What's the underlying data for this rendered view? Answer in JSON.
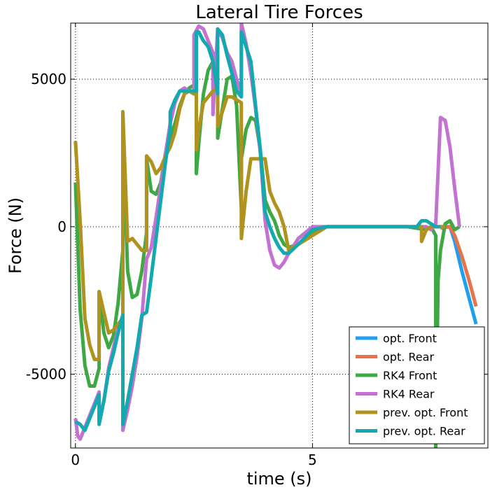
{
  "chart_data": {
    "type": "line",
    "title": "Lateral Tire Forces",
    "xlabel": "time (s)",
    "ylabel": "Force (N)",
    "xlim": [
      -0.1,
      8.7
    ],
    "ylim": [
      -7500,
      6900
    ],
    "xticks": [
      0,
      5
    ],
    "xtick_labels": [
      "0",
      "5"
    ],
    "yticks": [
      -5000,
      0,
      5000
    ],
    "ytick_labels": [
      "-5000",
      "0",
      "5000"
    ],
    "grid": true,
    "legend_position": "bottom-right",
    "series": [
      {
        "name": "opt. Front",
        "color": "#1f9ff0",
        "x": [
          7.7,
          7.9,
          8.0,
          8.15,
          8.3,
          8.45
        ],
        "y": [
          0,
          0,
          -500,
          -1500,
          -2400,
          -3300
        ]
      },
      {
        "name": "opt. Rear",
        "color": "#e8734a",
        "x": [
          7.7,
          7.9,
          8.0,
          8.15,
          8.3,
          8.45
        ],
        "y": [
          -50,
          0,
          -300,
          -1000,
          -1800,
          -2700
        ]
      },
      {
        "name": "RK4 Front",
        "color": "#3ea845",
        "x": [
          0,
          0.1,
          0.2,
          0.3,
          0.4,
          0.5,
          0.5,
          0.6,
          0.7,
          0.8,
          0.9,
          1.0,
          1.0,
          1.1,
          1.2,
          1.3,
          1.4,
          1.5,
          1.5,
          1.6,
          1.7,
          1.8,
          1.9,
          2.0,
          2.1,
          2.2,
          2.3,
          2.4,
          2.5,
          2.55,
          2.55,
          2.6,
          2.7,
          2.8,
          2.9,
          3.0,
          3.0,
          3.1,
          3.2,
          3.3,
          3.4,
          3.5,
          3.5,
          3.6,
          3.7,
          3.8,
          3.9,
          4.0,
          4.1,
          4.2,
          4.3,
          4.4,
          4.5,
          4.7,
          5.0,
          5.3,
          5.6,
          6.0,
          6.5,
          7.0,
          7.4,
          7.5,
          7.6,
          7.6,
          7.65,
          7.7,
          7.8,
          7.9,
          8.0,
          8.1
        ],
        "y": [
          1500,
          -2800,
          -4700,
          -5400,
          -5400,
          -4800,
          -2200,
          -3600,
          -4100,
          -3700,
          -2600,
          -800,
          3300,
          -1500,
          -2400,
          -2300,
          -1500,
          -200,
          2300,
          1200,
          1100,
          1500,
          2500,
          3000,
          3500,
          4100,
          4500,
          4700,
          4800,
          4800,
          1800,
          2800,
          4500,
          5300,
          5600,
          5200,
          3000,
          4000,
          5000,
          5100,
          4100,
          600,
          2300,
          3300,
          3700,
          3600,
          2600,
          900,
          500,
          200,
          -300,
          -600,
          -700,
          -600,
          -200,
          0,
          0,
          0,
          0,
          0,
          -100,
          0,
          -300,
          -7500,
          -1800,
          -800,
          100,
          200,
          -100,
          0
        ]
      },
      {
        "name": "RK4 Rear",
        "color": "#c472d1",
        "x": [
          0,
          0.05,
          0.1,
          0.2,
          0.3,
          0.4,
          0.5,
          0.5,
          0.6,
          0.7,
          0.8,
          0.9,
          1.0,
          1.0,
          1.1,
          1.2,
          1.3,
          1.4,
          1.5,
          1.6,
          1.7,
          1.8,
          1.9,
          2.0,
          2.1,
          2.2,
          2.3,
          2.4,
          2.5,
          2.5,
          2.6,
          2.7,
          2.8,
          2.9,
          2.9,
          3.0,
          3.1,
          3.2,
          3.3,
          3.4,
          3.5,
          3.5,
          3.6,
          3.7,
          3.8,
          3.9,
          4.0,
          4.1,
          4.2,
          4.3,
          4.4,
          4.5,
          4.7,
          5.0,
          5.3,
          5.6,
          6.0,
          6.5,
          7.0,
          7.4,
          7.5,
          7.55,
          7.6,
          7.7,
          7.8,
          7.9,
          8.0,
          8.1
        ],
        "y": [
          -6500,
          -7100,
          -7200,
          -6800,
          -6400,
          -6000,
          -5600,
          -6600,
          -5900,
          -4800,
          -4100,
          -3500,
          -3000,
          -6900,
          -6200,
          -5400,
          -4400,
          -3100,
          -1100,
          -700,
          300,
          1400,
          2500,
          3500,
          4200,
          4600,
          4700,
          4600,
          4500,
          6500,
          6800,
          6700,
          6300,
          5900,
          3800,
          6700,
          6400,
          5900,
          5600,
          5000,
          4500,
          6900,
          6200,
          5200,
          4000,
          2500,
          200,
          -800,
          -1300,
          -1400,
          -1200,
          -900,
          -400,
          0,
          0,
          0,
          0,
          0,
          0,
          0,
          -100,
          0,
          100,
          3700,
          3600,
          2700,
          1300,
          0
        ]
      },
      {
        "name": "prev. opt. Front",
        "color": "#b0921e",
        "x": [
          0,
          0.1,
          0.2,
          0.3,
          0.4,
          0.5,
          0.5,
          0.6,
          0.7,
          0.8,
          0.9,
          1.0,
          1.0,
          1.1,
          1.2,
          1.3,
          1.4,
          1.5,
          1.5,
          1.6,
          1.7,
          1.8,
          1.9,
          2.0,
          2.1,
          2.2,
          2.3,
          2.4,
          2.5,
          2.55,
          2.55,
          2.6,
          2.7,
          2.8,
          2.9,
          3.0,
          3.0,
          3.1,
          3.2,
          3.3,
          3.4,
          3.5,
          3.5,
          3.6,
          3.7,
          3.8,
          3.9,
          4.0,
          4.1,
          4.2,
          4.3,
          4.4,
          4.5,
          4.7,
          5.0,
          5.3,
          5.6,
          6.0,
          6.5,
          7.0,
          7.3,
          7.3,
          7.4,
          7.5,
          7.5,
          7.6,
          7.7,
          7.8
        ],
        "y": [
          2900,
          200,
          -3100,
          -4000,
          -4500,
          -4500,
          -2200,
          -2900,
          -3600,
          -3500,
          -3300,
          -3100,
          3900,
          -500,
          -400,
          -600,
          -800,
          -800,
          2400,
          2200,
          1800,
          2000,
          2400,
          2700,
          3200,
          4000,
          4500,
          4600,
          4500,
          4500,
          2600,
          3300,
          4200,
          4400,
          4600,
          4700,
          3400,
          3900,
          4400,
          4400,
          4300,
          4200,
          -400,
          1200,
          2300,
          2300,
          2300,
          2300,
          1200,
          800,
          500,
          0,
          -800,
          -600,
          -300,
          0,
          0,
          0,
          0,
          0,
          0,
          -500,
          -100,
          0,
          0,
          0,
          0,
          0
        ]
      },
      {
        "name": "prev. opt. Rear",
        "color": "#12a9b0",
        "x": [
          0,
          0.1,
          0.2,
          0.3,
          0.4,
          0.5,
          0.5,
          0.6,
          0.7,
          0.8,
          0.9,
          1.0,
          1.0,
          1.1,
          1.2,
          1.3,
          1.4,
          1.5,
          1.6,
          1.7,
          1.8,
          1.9,
          2.0,
          2.0,
          2.1,
          2.2,
          2.3,
          2.4,
          2.5,
          2.55,
          2.55,
          2.6,
          2.7,
          2.8,
          2.9,
          3.0,
          3.0,
          3.1,
          3.2,
          3.3,
          3.4,
          3.5,
          3.5,
          3.6,
          3.7,
          3.8,
          3.9,
          4.0,
          4.1,
          4.2,
          4.3,
          4.4,
          4.5,
          4.7,
          5.0,
          5.3,
          5.6,
          6.0,
          6.5,
          7.0,
          7.2,
          7.3,
          7.4,
          7.5,
          7.6,
          7.7
        ],
        "y": [
          -6600,
          -6700,
          -6900,
          -6500,
          -6100,
          -5700,
          -6700,
          -5900,
          -4900,
          -4300,
          -3600,
          -3000,
          -6700,
          -5900,
          -5000,
          -4100,
          -3000,
          -2900,
          -1700,
          -400,
          900,
          2200,
          3300,
          3900,
          4300,
          4600,
          4600,
          4600,
          4600,
          4600,
          6600,
          6600,
          6300,
          6100,
          5600,
          4500,
          6700,
          6500,
          5800,
          5200,
          4600,
          4400,
          6600,
          6100,
          5600,
          4100,
          2600,
          500,
          0,
          -400,
          -700,
          -900,
          -900,
          -600,
          -100,
          0,
          0,
          0,
          0,
          0,
          0,
          200,
          200,
          100,
          0,
          0
        ]
      }
    ]
  }
}
